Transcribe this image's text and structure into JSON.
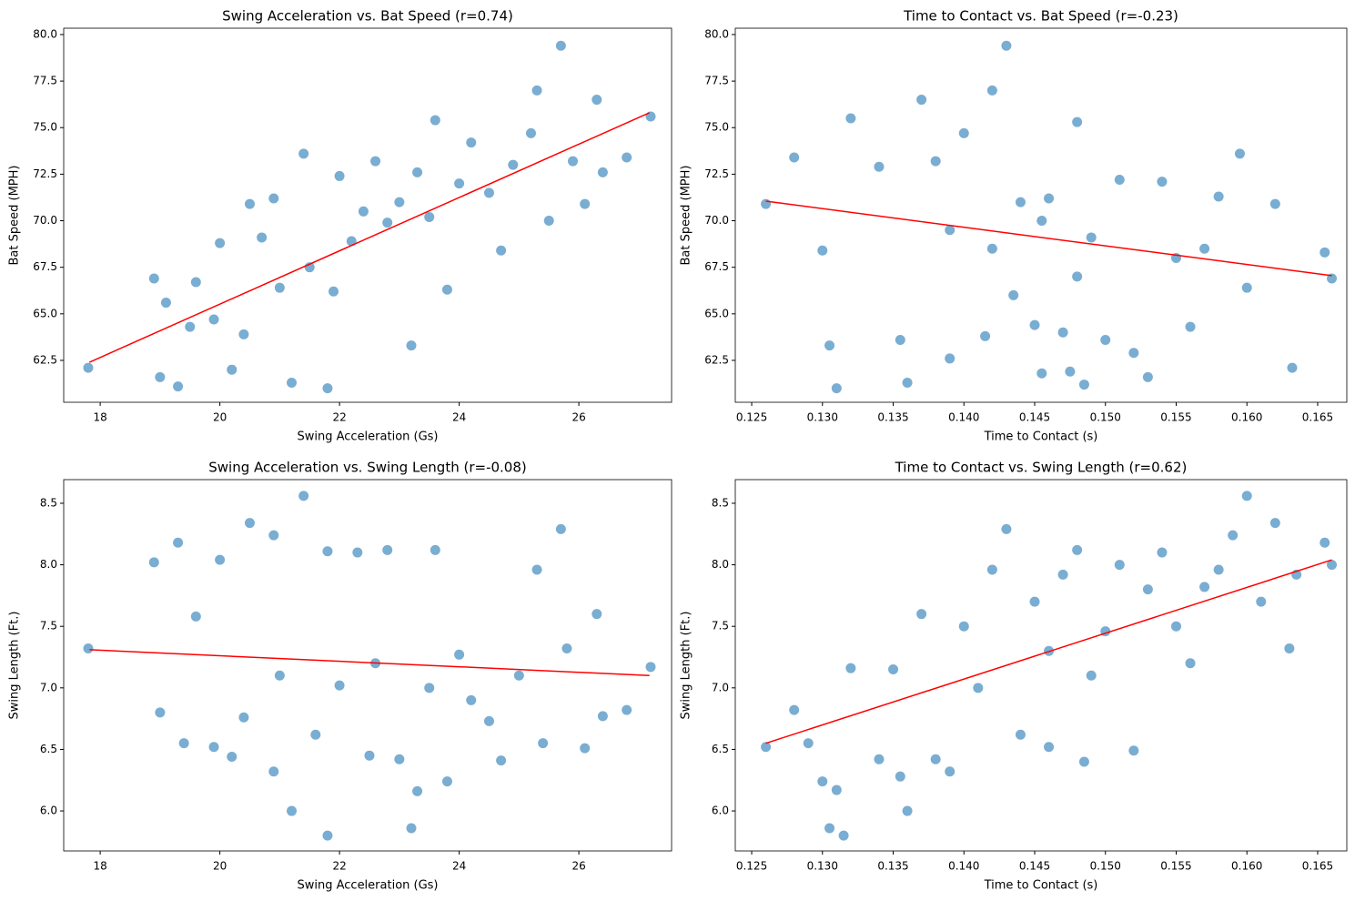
{
  "chart_data": [
    {
      "type": "scatter",
      "title": "Swing Acceleration vs. Bat Speed (r=0.74)",
      "xlabel": "Swing Acceleration (Gs)",
      "ylabel": "Bat Speed (MPH)",
      "xlim": [
        17.39,
        27.55
      ],
      "ylim": [
        60.25,
        80.34
      ],
      "xticks": [
        18,
        20,
        22,
        24,
        26
      ],
      "yticks": [
        62.5,
        {
          "value": 65,
          "label": "65.0"
        },
        67.5,
        {
          "value": 70,
          "label": "70.0"
        },
        72.5,
        {
          "value": 75,
          "label": "75.0"
        },
        77.5,
        {
          "value": 80,
          "label": "80.0"
        }
      ],
      "series": [
        {
          "type": "scatter",
          "color": "#1f77b4",
          "x": [
            17.8,
            18.9,
            19.0,
            19.3,
            19.1,
            19.5,
            19.6,
            19.9,
            20.0,
            20.2,
            20.4,
            20.5,
            20.7,
            20.9,
            21.0,
            21.2,
            21.4,
            21.5,
            21.8,
            21.9,
            22.0,
            22.2,
            22.4,
            22.6,
            22.8,
            23.0,
            23.2,
            23.3,
            23.5,
            23.6,
            23.8,
            24.0,
            24.2,
            24.5,
            24.7,
            24.9,
            25.2,
            25.3,
            25.5,
            25.7,
            25.9,
            26.1,
            26.3,
            26.4,
            26.8,
            27.2
          ],
          "values": [
            62.1,
            66.9,
            61.6,
            61.1,
            65.6,
            64.3,
            66.7,
            64.7,
            68.8,
            62.0,
            63.9,
            70.9,
            69.1,
            71.2,
            66.4,
            61.3,
            73.6,
            67.5,
            61.0,
            66.2,
            72.4,
            68.9,
            70.5,
            73.2,
            69.9,
            71.0,
            63.3,
            72.6,
            70.2,
            75.4,
            66.3,
            72.0,
            74.2,
            71.5,
            68.4,
            73.0,
            74.7,
            77.0,
            70.0,
            79.4,
            73.2,
            70.9,
            76.5,
            72.6,
            73.4,
            75.6
          ]
        },
        {
          "type": "line",
          "color": "#ff0000",
          "x": [
            17.82,
            27.18
          ],
          "values": [
            62.4,
            75.8
          ]
        }
      ]
    },
    {
      "type": "scatter",
      "title": "Time to Contact vs. Bat Speed (r=-0.23)",
      "xlabel": "Time to Contact (s)",
      "ylabel": "Bat Speed (MPH)",
      "xlim": [
        0.12384,
        0.16706
      ],
      "ylim": [
        60.25,
        80.34
      ],
      "xticks": [
        0.125,
        {
          "value": 0.13,
          "label": "0.130"
        },
        0.135,
        {
          "value": 0.14,
          "label": "0.140"
        },
        0.145,
        {
          "value": 0.15,
          "label": "0.150"
        },
        0.155,
        {
          "value": 0.16,
          "label": "0.160"
        },
        0.165
      ],
      "yticks": [
        62.5,
        {
          "value": 65,
          "label": "65.0"
        },
        67.5,
        {
          "value": 70,
          "label": "70.0"
        },
        72.5,
        {
          "value": 75,
          "label": "75.0"
        },
        77.5,
        {
          "value": 80,
          "label": "80.0"
        }
      ],
      "series": [
        {
          "type": "scatter",
          "color": "#1f77b4",
          "x": [
            0.126,
            0.128,
            0.13,
            0.1305,
            0.131,
            0.132,
            0.134,
            0.1355,
            0.136,
            0.137,
            0.138,
            0.139,
            0.14,
            0.1415,
            0.142,
            0.143,
            0.1435,
            0.144,
            0.145,
            0.1455,
            0.146,
            0.147,
            0.1475,
            0.148,
            0.1485,
            0.149,
            0.15,
            0.151,
            0.152,
            0.153,
            0.154,
            0.155,
            0.156,
            0.157,
            0.158,
            0.1595,
            0.16,
            0.162,
            0.1632,
            0.1655,
            0.166,
            0.1455,
            0.142,
            0.139,
            0.148
          ],
          "values": [
            70.9,
            73.4,
            68.4,
            63.3,
            61.0,
            75.5,
            72.9,
            63.6,
            61.3,
            76.5,
            73.2,
            62.6,
            74.7,
            63.8,
            77.0,
            79.4,
            66.0,
            71.0,
            64.4,
            61.8,
            71.2,
            64.0,
            61.9,
            75.3,
            61.2,
            69.1,
            63.6,
            72.2,
            62.9,
            61.6,
            72.1,
            68.0,
            64.3,
            68.5,
            71.3,
            73.6,
            66.4,
            70.9,
            62.1,
            68.3,
            66.9,
            70.0,
            68.5,
            69.5,
            67.0
          ]
        },
        {
          "type": "line",
          "color": "#ff0000",
          "x": [
            0.126,
            0.166
          ],
          "values": [
            71.05,
            67.05
          ]
        }
      ]
    },
    {
      "type": "scatter",
      "title": "Swing Acceleration vs. Swing Length (r=-0.08)",
      "xlabel": "Swing Acceleration (Gs)",
      "ylabel": "Swing Length (Ft.)",
      "xlim": [
        17.39,
        27.55
      ],
      "ylim": [
        5.675,
        8.692
      ],
      "xticks": [
        18,
        20,
        22,
        24,
        26
      ],
      "yticks": [
        {
          "value": 6,
          "label": "6.0"
        },
        6.5,
        {
          "value": 7,
          "label": "7.0"
        },
        7.5,
        {
          "value": 8,
          "label": "8.0"
        },
        8.5
      ],
      "series": [
        {
          "type": "scatter",
          "color": "#1f77b4",
          "x": [
            17.8,
            18.9,
            19.0,
            19.3,
            19.4,
            19.6,
            19.9,
            20.0,
            20.2,
            20.4,
            20.5,
            20.9,
            20.9,
            21.2,
            21.4,
            21.6,
            21.8,
            21.8,
            22.0,
            22.3,
            22.5,
            22.8,
            23.0,
            23.2,
            23.3,
            23.6,
            23.8,
            24.0,
            24.2,
            24.5,
            24.7,
            25.0,
            25.3,
            25.4,
            25.7,
            25.8,
            26.1,
            26.3,
            26.4,
            26.8,
            27.2,
            22.6,
            23.5,
            21.0
          ],
          "values": [
            7.32,
            8.02,
            6.8,
            8.18,
            6.55,
            7.58,
            6.52,
            8.04,
            6.44,
            6.76,
            8.34,
            6.32,
            8.24,
            6.0,
            8.56,
            6.62,
            5.8,
            8.11,
            7.02,
            8.1,
            6.45,
            8.12,
            6.42,
            5.86,
            6.16,
            8.12,
            6.24,
            7.27,
            6.9,
            6.73,
            6.41,
            7.1,
            7.96,
            6.55,
            8.29,
            7.32,
            6.51,
            7.6,
            6.77,
            6.82,
            7.17,
            7.2,
            7.0,
            7.1
          ]
        },
        {
          "type": "line",
          "color": "#ff0000",
          "x": [
            17.82,
            27.18
          ],
          "values": [
            7.31,
            7.1
          ]
        }
      ]
    },
    {
      "type": "scatter",
      "title": "Time to Contact vs. Swing Length (r=0.62)",
      "xlabel": "Time to Contact (s)",
      "ylabel": "Swing Length (Ft.)",
      "xlim": [
        0.12384,
        0.16706
      ],
      "ylim": [
        5.675,
        8.692
      ],
      "xticks": [
        0.125,
        {
          "value": 0.13,
          "label": "0.130"
        },
        0.135,
        {
          "value": 0.14,
          "label": "0.140"
        },
        0.145,
        {
          "value": 0.15,
          "label": "0.150"
        },
        0.155,
        {
          "value": 0.16,
          "label": "0.160"
        },
        0.165
      ],
      "yticks": [
        {
          "value": 6,
          "label": "6.0"
        },
        6.5,
        {
          "value": 7,
          "label": "7.0"
        },
        7.5,
        {
          "value": 8,
          "label": "8.0"
        },
        8.5
      ],
      "series": [
        {
          "type": "scatter",
          "color": "#1f77b4",
          "x": [
            0.126,
            0.128,
            0.129,
            0.13,
            0.1305,
            0.131,
            0.1315,
            0.132,
            0.134,
            0.135,
            0.1355,
            0.136,
            0.137,
            0.138,
            0.139,
            0.14,
            0.142,
            0.143,
            0.144,
            0.145,
            0.146,
            0.147,
            0.148,
            0.1485,
            0.15,
            0.151,
            0.152,
            0.153,
            0.154,
            0.155,
            0.156,
            0.157,
            0.158,
            0.159,
            0.16,
            0.161,
            0.162,
            0.163,
            0.1635,
            0.1655,
            0.166,
            0.141,
            0.146,
            0.149
          ],
          "values": [
            6.52,
            6.82,
            6.55,
            6.24,
            5.86,
            6.17,
            5.8,
            7.16,
            6.42,
            7.15,
            6.28,
            6.0,
            7.6,
            6.42,
            6.32,
            7.5,
            7.96,
            8.29,
            6.62,
            7.7,
            6.52,
            7.92,
            8.12,
            6.4,
            7.46,
            8.0,
            6.49,
            7.8,
            8.1,
            7.5,
            7.2,
            7.82,
            7.96,
            8.24,
            8.56,
            7.7,
            8.34,
            7.32,
            7.92,
            8.18,
            8.0,
            7.0,
            7.3,
            7.1
          ]
        },
        {
          "type": "line",
          "color": "#ff0000",
          "x": [
            0.126,
            0.166
          ],
          "values": [
            6.55,
            8.04
          ]
        }
      ]
    }
  ]
}
